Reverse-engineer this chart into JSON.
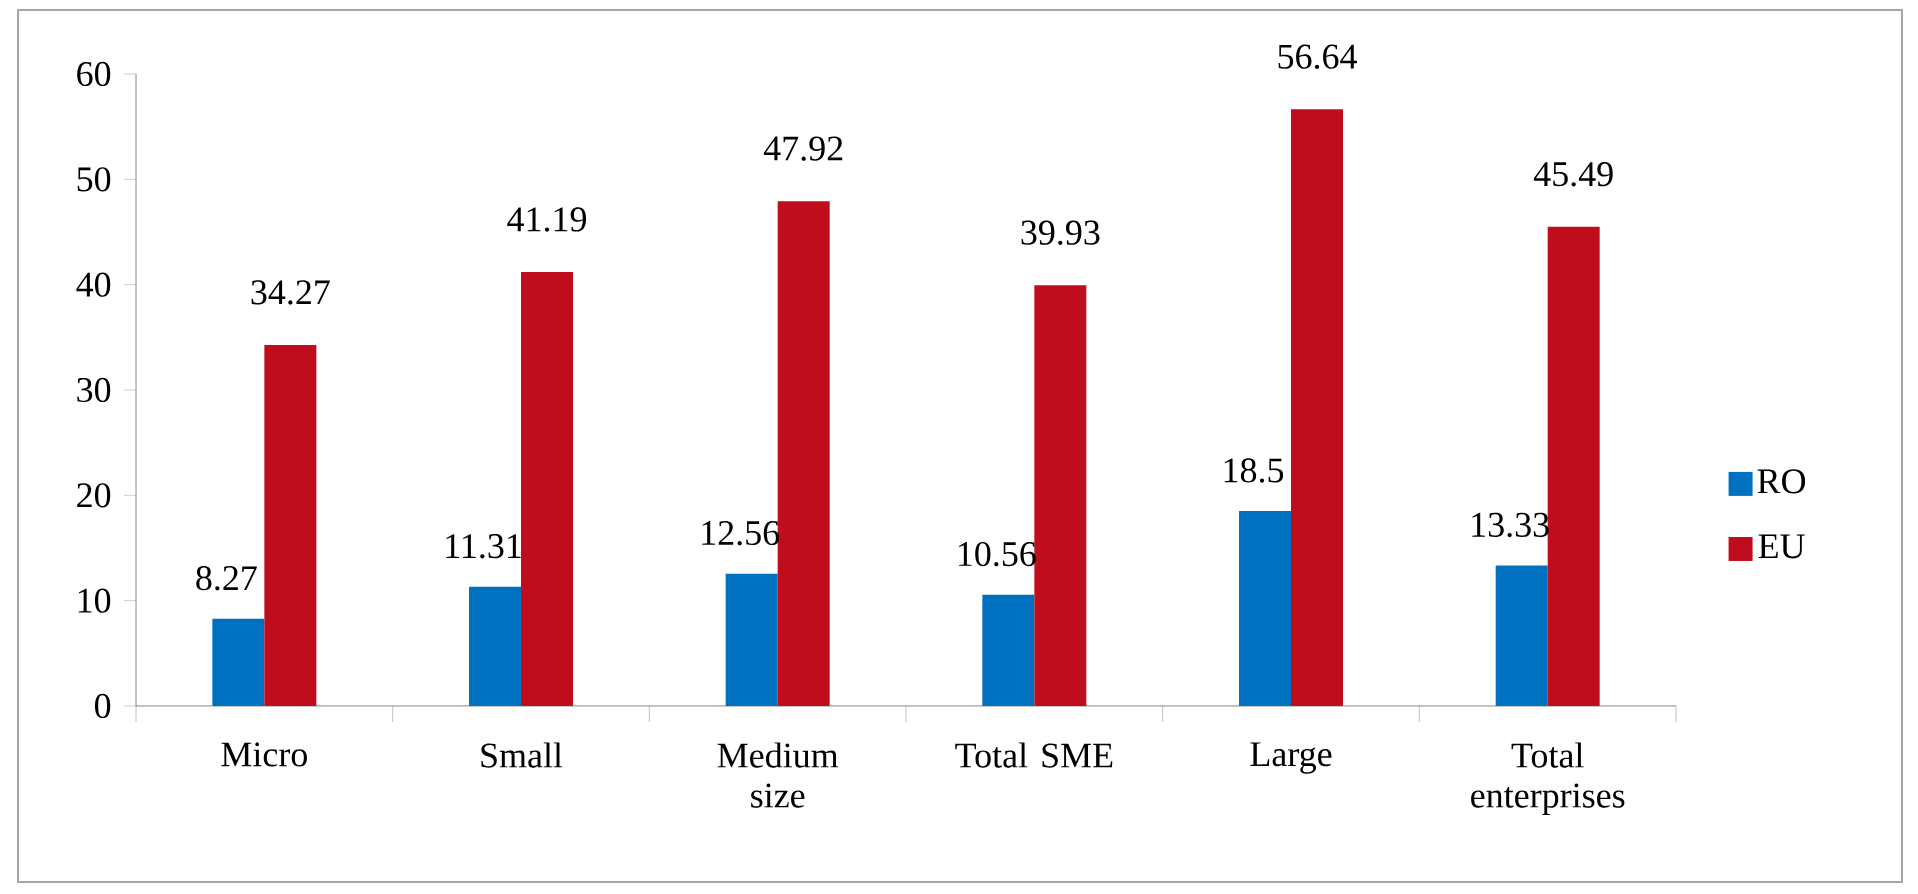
{
  "chart_data": {
    "type": "bar",
    "categories": [
      "Micro",
      "Small",
      "Medium size",
      "Total SME",
      "Large",
      "Total enterprises"
    ],
    "series": [
      {
        "name": "RO",
        "color": "#0070c0",
        "values": [
          8.27,
          11.31,
          12.56,
          10.56,
          18.5,
          13.33
        ]
      },
      {
        "name": "EU",
        "color": "#c00d1e",
        "values": [
          34.27,
          41.19,
          47.92,
          39.93,
          56.64,
          45.49
        ]
      }
    ],
    "ylim": [
      0,
      60
    ],
    "yticks": [
      0,
      10,
      20,
      30,
      40,
      50,
      60
    ],
    "data_labels": true,
    "legend": "right",
    "grid": false
  }
}
